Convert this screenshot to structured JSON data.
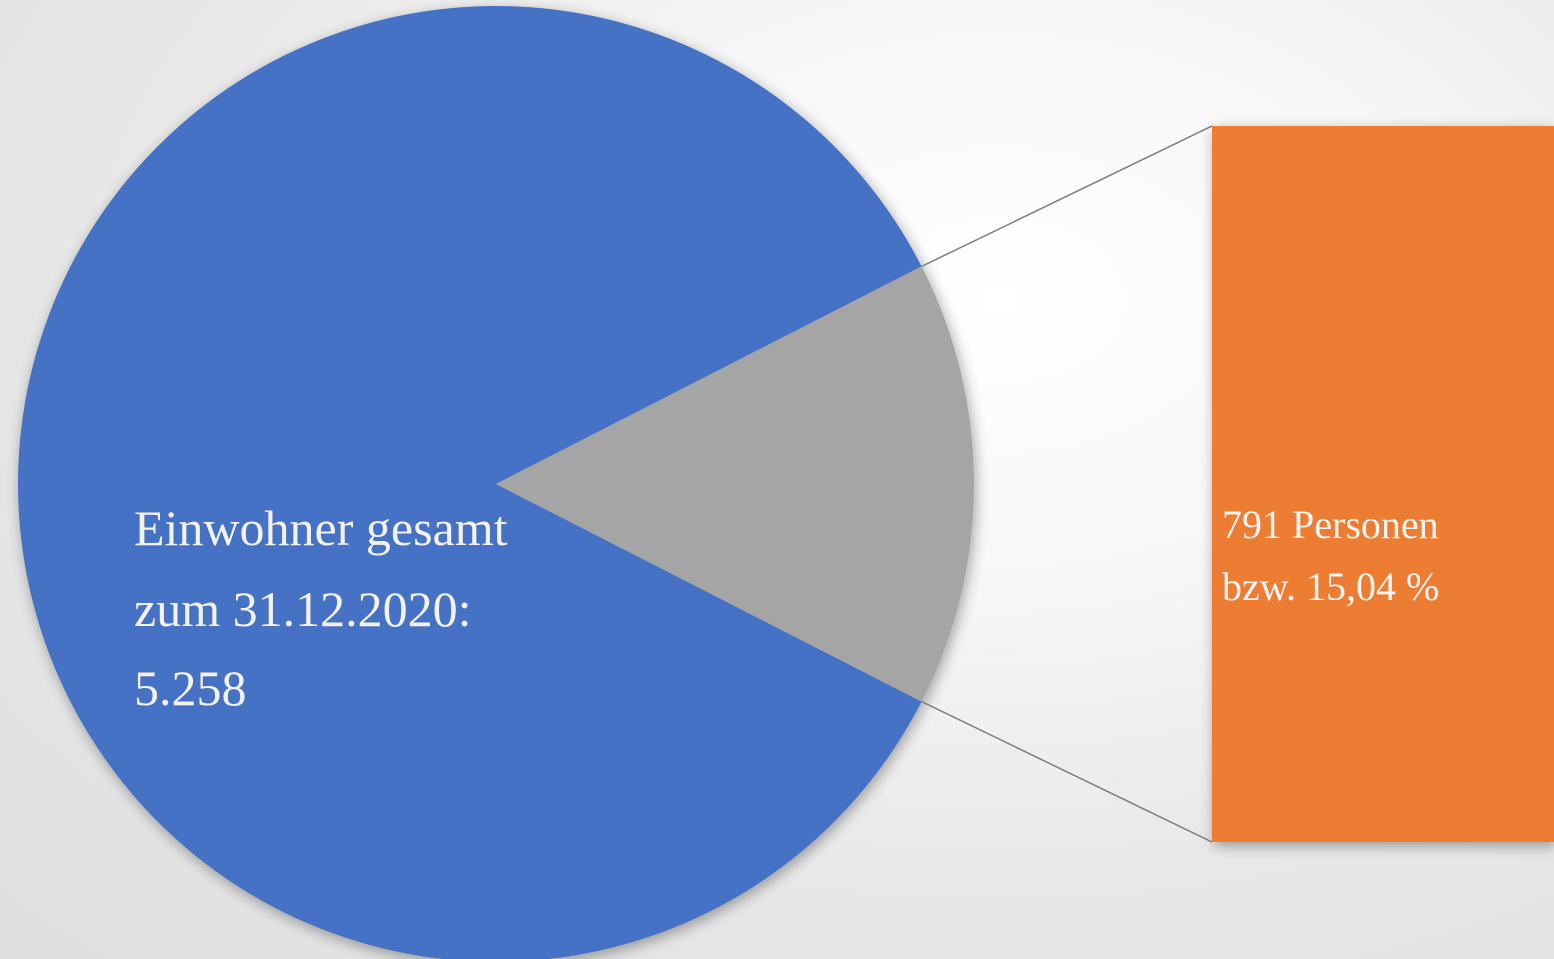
{
  "chart_data": {
    "type": "pie",
    "variant": "bar-of-pie",
    "slices": [
      {
        "label_lines": [
          "Einwohner gesamt",
          "zum 31.12.2020:",
          "5.258"
        ],
        "value": 4467,
        "color": "#4472C4"
      },
      {
        "label_lines": [],
        "value": 791,
        "color": "#A5A5A5"
      }
    ],
    "bar": {
      "value": 791,
      "label_lines": [
        "791 Personen",
        "bzw. 15,04 %"
      ],
      "color": "#ED7D31"
    },
    "connector_color": "#7f7f7f",
    "total": 5258
  }
}
